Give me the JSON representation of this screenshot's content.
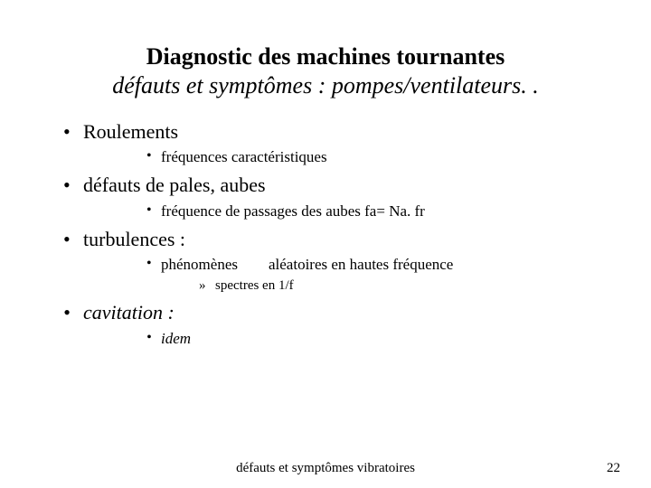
{
  "colors": {
    "background": "#ffffff",
    "text": "#000000"
  },
  "title": {
    "line1": "Diagnostic des machines tournantes",
    "line2": "défauts et symptômes : pompes/ventilateurs. ."
  },
  "bullets": {
    "b1": {
      "label": "Roulements",
      "sub1": "fréquences caractéristiques"
    },
    "b2": {
      "label": "défauts de pales, aubes",
      "sub1": "fréquence de passages des aubes fa= Na. fr"
    },
    "b3": {
      "label": "turbulences :",
      "sub1a": "phénomènes",
      "sub1b": "aléatoires en hautes fréquence",
      "sub1_sub1": "spectres en 1/f"
    },
    "b4": {
      "label": "cavitation :",
      "sub1": "idem"
    }
  },
  "footer": {
    "text": "défauts et symptômes vibratoires",
    "page": "22"
  },
  "typography": {
    "title_fontsize": 26,
    "level1_fontsize": 22,
    "level2_fontsize": 17,
    "level3_fontsize": 15,
    "footer_fontsize": 15,
    "font_family": "Times New Roman"
  }
}
